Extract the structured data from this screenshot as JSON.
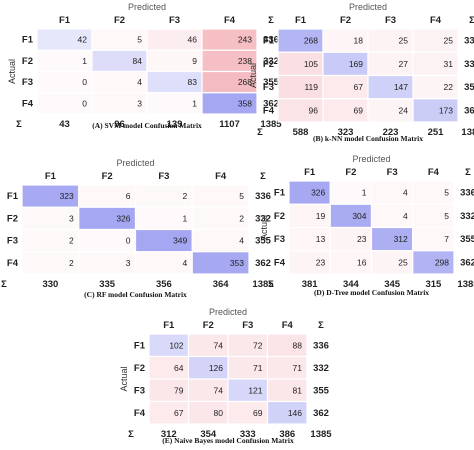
{
  "chart_data": [
    {
      "type": "heatmap",
      "title": "(A) SVM model Confusion Matrix",
      "predicted_label": "Predicted",
      "actual_label": "Actual",
      "sum_label": "Σ",
      "classes": [
        "F1",
        "F2",
        "F3",
        "F4"
      ],
      "matrix": [
        [
          42,
          5,
          46,
          243
        ],
        [
          1,
          84,
          9,
          238
        ],
        [
          0,
          4,
          83,
          268
        ],
        [
          0,
          3,
          1,
          358
        ]
      ],
      "row_sums": [
        336,
        332,
        355,
        362
      ],
      "col_sums": [
        43,
        96,
        139,
        1107
      ],
      "total": 1385
    },
    {
      "type": "heatmap",
      "title": "(B) k-NN model Confusion Matrix",
      "predicted_label": "Predicted",
      "actual_label": "Actual",
      "sum_label": "Σ",
      "classes": [
        "F1",
        "F2",
        "F3",
        "F4"
      ],
      "matrix": [
        [
          268,
          18,
          25,
          25
        ],
        [
          105,
          169,
          27,
          31
        ],
        [
          119,
          67,
          147,
          22
        ],
        [
          96,
          69,
          24,
          173
        ]
      ],
      "row_sums": [
        336,
        332,
        355,
        362
      ],
      "col_sums": [
        588,
        323,
        223,
        251
      ],
      "total": 1385
    },
    {
      "type": "heatmap",
      "title": "(C) RF model Confusion Matrix",
      "predicted_label": "Predicted",
      "actual_label": "Actual",
      "sum_label": "Σ",
      "classes": [
        "F1",
        "F2",
        "F3",
        "F4"
      ],
      "matrix": [
        [
          323,
          6,
          2,
          5
        ],
        [
          3,
          326,
          1,
          2
        ],
        [
          2,
          0,
          349,
          4
        ],
        [
          2,
          3,
          4,
          353
        ]
      ],
      "row_sums": [
        336,
        332,
        355,
        362
      ],
      "col_sums": [
        330,
        335,
        356,
        364
      ],
      "total": 1385
    },
    {
      "type": "heatmap",
      "title": "(D) D-Tree model Confusion Matrix",
      "predicted_label": "Predicted",
      "actual_label": "Actual",
      "sum_label": "Σ",
      "classes": [
        "F1",
        "F2",
        "F3",
        "F4"
      ],
      "matrix": [
        [
          326,
          1,
          4,
          5
        ],
        [
          19,
          304,
          4,
          5
        ],
        [
          13,
          23,
          312,
          7
        ],
        [
          23,
          16,
          25,
          298
        ]
      ],
      "row_sums": [
        336,
        332,
        355,
        362
      ],
      "col_sums": [
        381,
        344,
        345,
        315
      ],
      "total": 1385
    },
    {
      "type": "heatmap",
      "title": "(E) Naive Bayes model Confusion Matrix",
      "predicted_label": "Predicted",
      "actual_label": "Actual",
      "sum_label": "Σ",
      "classes": [
        "F1",
        "F2",
        "F3",
        "F4"
      ],
      "matrix": [
        [
          102,
          74,
          72,
          88
        ],
        [
          64,
          126,
          71,
          71
        ],
        [
          79,
          74,
          121,
          81
        ],
        [
          67,
          80,
          69,
          146
        ]
      ],
      "row_sums": [
        336,
        332,
        355,
        362
      ],
      "col_sums": [
        312,
        354,
        333,
        386
      ],
      "total": 1385
    }
  ],
  "colors": {
    "diagonal": "#9a9cf0",
    "off_diagonal": "#f0a0a8",
    "divider": "#ffffff"
  }
}
